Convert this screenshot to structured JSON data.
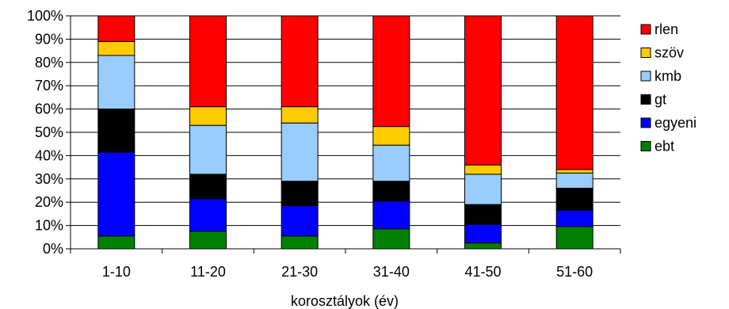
{
  "chart_data": {
    "type": "bar",
    "stacked": true,
    "percent_stacked": true,
    "categories": [
      "1-10",
      "11-20",
      "21-30",
      "31-40",
      "41-50",
      "51-60"
    ],
    "series": [
      {
        "name": "ebt",
        "color": "#008000",
        "values": [
          5.5,
          7.5,
          5.5,
          8.5,
          2.5,
          9.5
        ]
      },
      {
        "name": "egyeni",
        "color": "#0000ff",
        "values": [
          36,
          14,
          13,
          12,
          8,
          7
        ]
      },
      {
        "name": "gt",
        "color": "#000000",
        "values": [
          18.5,
          10.5,
          10.5,
          8.5,
          8.5,
          9.5
        ]
      },
      {
        "name": "kmb",
        "color": "#99ccff",
        "values": [
          23,
          21,
          25,
          15.5,
          13,
          6.5
        ]
      },
      {
        "name": "szöv",
        "color": "#ffcc00",
        "values": [
          6,
          8,
          7,
          8,
          4,
          1.5
        ]
      },
      {
        "name": "rlen",
        "color": "#ff0000",
        "values": [
          11,
          39,
          39,
          47.5,
          64,
          66
        ]
      }
    ],
    "xlabel": "korosztályok (év)",
    "ylabel": "",
    "ylim": [
      0,
      100
    ],
    "y_ticks": [
      "0%",
      "10%",
      "20%",
      "30%",
      "40%",
      "50%",
      "60%",
      "70%",
      "80%",
      "90%",
      "100%"
    ],
    "grid": "horizontal",
    "legend_position": "right"
  }
}
